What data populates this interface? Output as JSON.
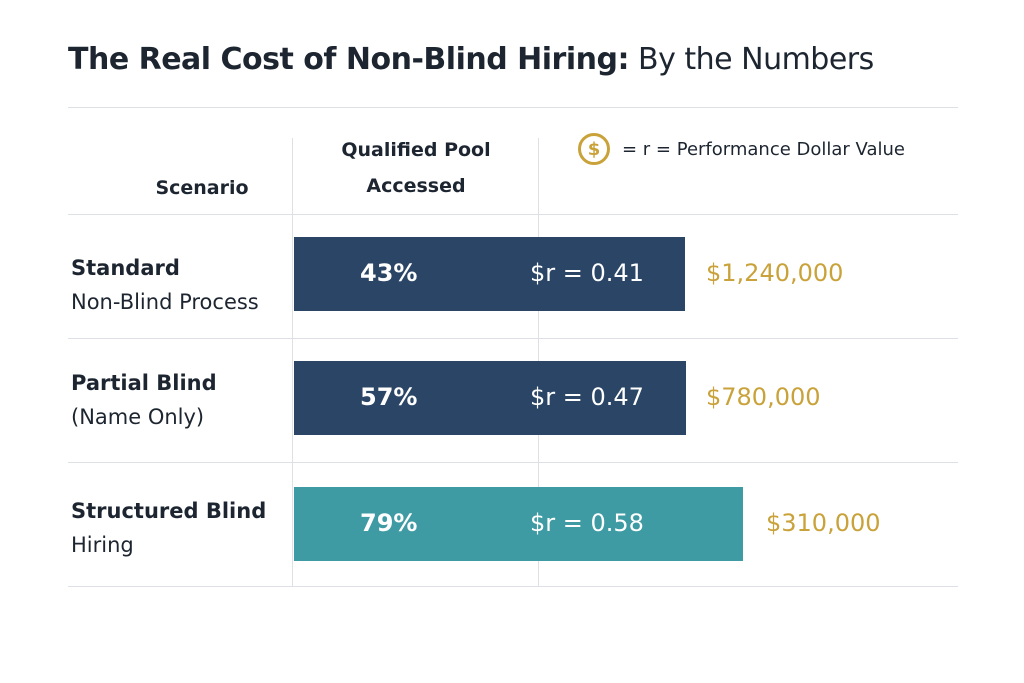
{
  "title_bold": "The Real Cost of Non-Blind Hiring:",
  "title_rest": " By the Numbers",
  "headers": {
    "scenario": "Scenario",
    "pool_line1": "Qualified Pool",
    "pool_line2": "Accessed"
  },
  "legend": {
    "icon": "dollar-coin-icon",
    "symbol": "$",
    "text": "= r = Performance Dollar Value"
  },
  "colors": {
    "navy": "#2a4566",
    "teal": "#3e9ba3",
    "gold": "#c9a23a"
  },
  "chart_data": {
    "type": "table",
    "categories": [
      "Standard Non-Blind Process",
      "Partial Blind (Name Only)",
      "Structured Blind Hiring"
    ],
    "rows": [
      {
        "line1": "Standard",
        "line2": "Non-Blind Process",
        "pool": "43%",
        "pool_value": 43,
        "r": "$r = 0.41",
        "r_value": 0.41,
        "cost": "$1,240,000",
        "cost_value": 1240000,
        "color": "#2a4566"
      },
      {
        "line1": "Partial Blind",
        "line2": "(Name Only)",
        "pool": "57%",
        "pool_value": 57,
        "r": "$r = 0.47",
        "r_value": 0.47,
        "cost": "$780,000",
        "cost_value": 780000,
        "color": "#2a4566"
      },
      {
        "line1": "Structured Blind",
        "line2": "Hiring",
        "pool": "79%",
        "pool_value": 79,
        "r": "$r = 0.58",
        "r_value": 0.58,
        "cost": "$310,000",
        "cost_value": 310000,
        "color": "#3e9ba3"
      }
    ]
  }
}
